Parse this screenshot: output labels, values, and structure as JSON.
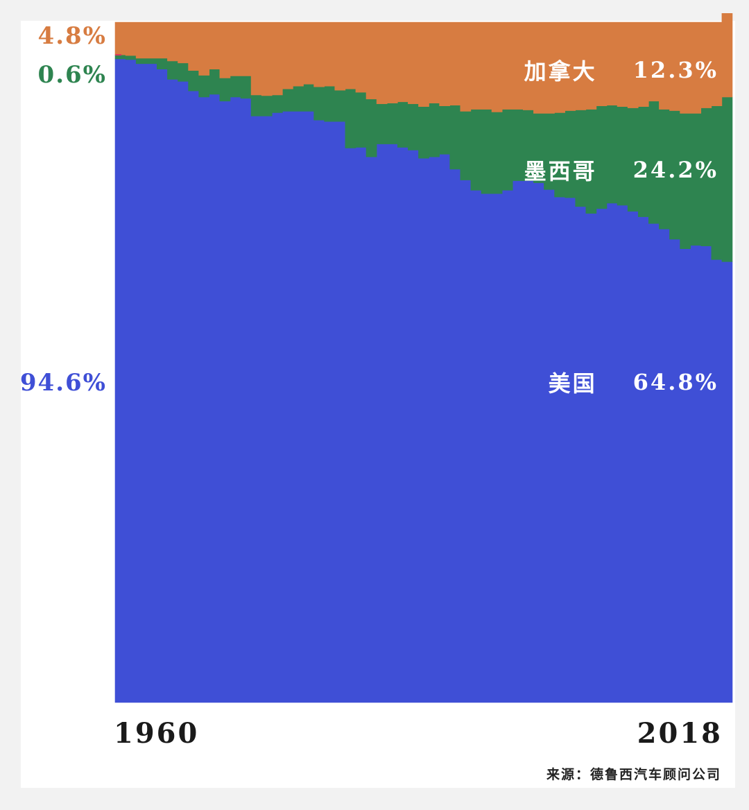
{
  "chart_data": {
    "type": "area",
    "stacking": "percent",
    "x_start": "1960",
    "x_end": "2018",
    "x": [
      1960,
      1961,
      1962,
      1963,
      1964,
      1965,
      1966,
      1967,
      1968,
      1969,
      1970,
      1971,
      1972,
      1973,
      1974,
      1975,
      1976,
      1977,
      1978,
      1979,
      1980,
      1981,
      1982,
      1983,
      1984,
      1985,
      1986,
      1987,
      1988,
      1989,
      1990,
      1991,
      1992,
      1993,
      1994,
      1995,
      1996,
      1997,
      1998,
      1999,
      2000,
      2001,
      2002,
      2003,
      2004,
      2005,
      2006,
      2007,
      2008,
      2009,
      2010,
      2011,
      2012,
      2013,
      2014,
      2015,
      2016,
      2017,
      2018
    ],
    "ylim": [
      0,
      100
    ],
    "series": [
      {
        "name": "美国",
        "color": "#3f4fd6",
        "start_value": "94.6%",
        "end_value": "64.8%",
        "values": [
          94.6,
          94.5,
          93.9,
          93.9,
          93.1,
          91.6,
          91.3,
          89.9,
          89.0,
          89.4,
          88.4,
          89.0,
          88.8,
          86.2,
          86.2,
          86.7,
          86.9,
          86.9,
          86.9,
          85.6,
          85.4,
          85.4,
          81.5,
          81.6,
          80.2,
          82.1,
          82.1,
          81.6,
          81.2,
          80.0,
          80.2,
          80.6,
          78.4,
          76.8,
          75.3,
          74.8,
          74.8,
          75.3,
          76.7,
          76.7,
          76.4,
          75.4,
          74.3,
          74.2,
          72.9,
          71.9,
          72.6,
          73.4,
          73.1,
          72.2,
          71.4,
          70.4,
          69.6,
          68.1,
          66.7,
          67.2,
          67.1,
          65.1,
          64.8
        ]
      },
      {
        "name": "墨西哥",
        "color": "#2e8450",
        "start_value": "0.6%",
        "end_value": "24.2%",
        "values": [
          0.6,
          0.6,
          0.8,
          0.8,
          1.6,
          2.7,
          2.7,
          3.0,
          3.2,
          3.7,
          3.4,
          3.1,
          3.3,
          3.1,
          3.0,
          2.6,
          3.3,
          3.7,
          4.0,
          4.9,
          5.2,
          4.6,
          8.7,
          8.1,
          8.5,
          5.9,
          6.0,
          6.7,
          6.8,
          7.6,
          7.9,
          7.1,
          9.4,
          10.1,
          11.9,
          12.4,
          12.0,
          11.9,
          10.5,
          10.4,
          10.2,
          11.2,
          12.4,
          12.8,
          14.2,
          15.3,
          15.1,
          14.4,
          14.5,
          15.2,
          16.2,
          18.0,
          17.6,
          18.9,
          19.9,
          19.4,
          20.3,
          22.6,
          24.2
        ]
      },
      {
        "name": "加拿大",
        "color": "#d77c41",
        "start_value": "4.8%",
        "end_value": "12.3%",
        "values": [
          4.8,
          4.9,
          5.3,
          5.3,
          5.3,
          5.7,
          6.0,
          7.1,
          7.8,
          6.9,
          8.2,
          7.9,
          7.9,
          10.7,
          10.8,
          10.7,
          9.8,
          9.4,
          9.1,
          9.5,
          9.4,
          10.0,
          9.8,
          10.3,
          11.3,
          12.0,
          11.9,
          11.7,
          12.0,
          12.4,
          11.9,
          12.3,
          12.2,
          13.1,
          12.8,
          12.8,
          13.2,
          12.8,
          12.8,
          12.9,
          13.4,
          13.4,
          13.3,
          13.0,
          12.9,
          12.8,
          12.3,
          12.2,
          12.4,
          12.6,
          12.4,
          11.6,
          12.8,
          13.0,
          13.4,
          13.4,
          12.6,
          12.3,
          12.3
        ]
      }
    ],
    "source": "来源：德鲁西汽车顾问公司"
  }
}
